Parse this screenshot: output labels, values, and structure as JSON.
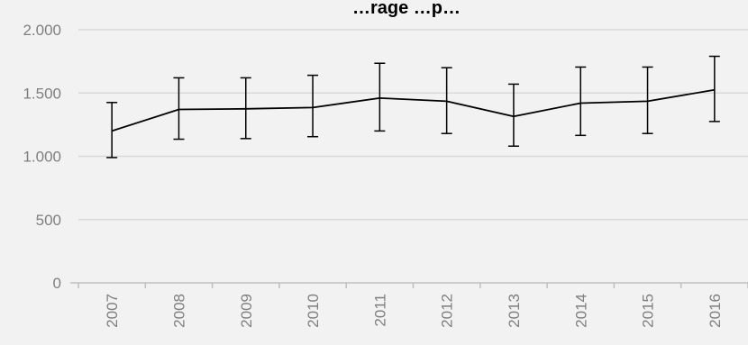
{
  "chart_data": {
    "type": "line",
    "title": "…rage …p…",
    "xlabel": "",
    "ylabel": "",
    "categories": [
      "2007",
      "2008",
      "2009",
      "2010",
      "2011",
      "2012",
      "2013",
      "2014",
      "2015",
      "2016"
    ],
    "series": [
      {
        "values": [
          1200,
          1370,
          1375,
          1385,
          1460,
          1435,
          1315,
          1420,
          1435,
          1525
        ],
        "error_low": [
          990,
          1135,
          1140,
          1155,
          1200,
          1180,
          1080,
          1165,
          1180,
          1275
        ],
        "error_high": [
          1425,
          1620,
          1620,
          1640,
          1735,
          1700,
          1570,
          1705,
          1705,
          1790
        ]
      }
    ],
    "ylim": [
      0,
      2000
    ],
    "yticks": [
      0,
      500,
      1000,
      1500,
      2000
    ],
    "ytick_labels": [
      "0",
      "500",
      "1.000",
      "1.500",
      "2.000"
    ],
    "grid": true,
    "legend": "none",
    "colors": {
      "line": "#000000",
      "grid": "#d9d9d9",
      "axis": "#bfbfbf",
      "tick_text": "#7f7f7f",
      "background": "#f2f2f2"
    }
  }
}
